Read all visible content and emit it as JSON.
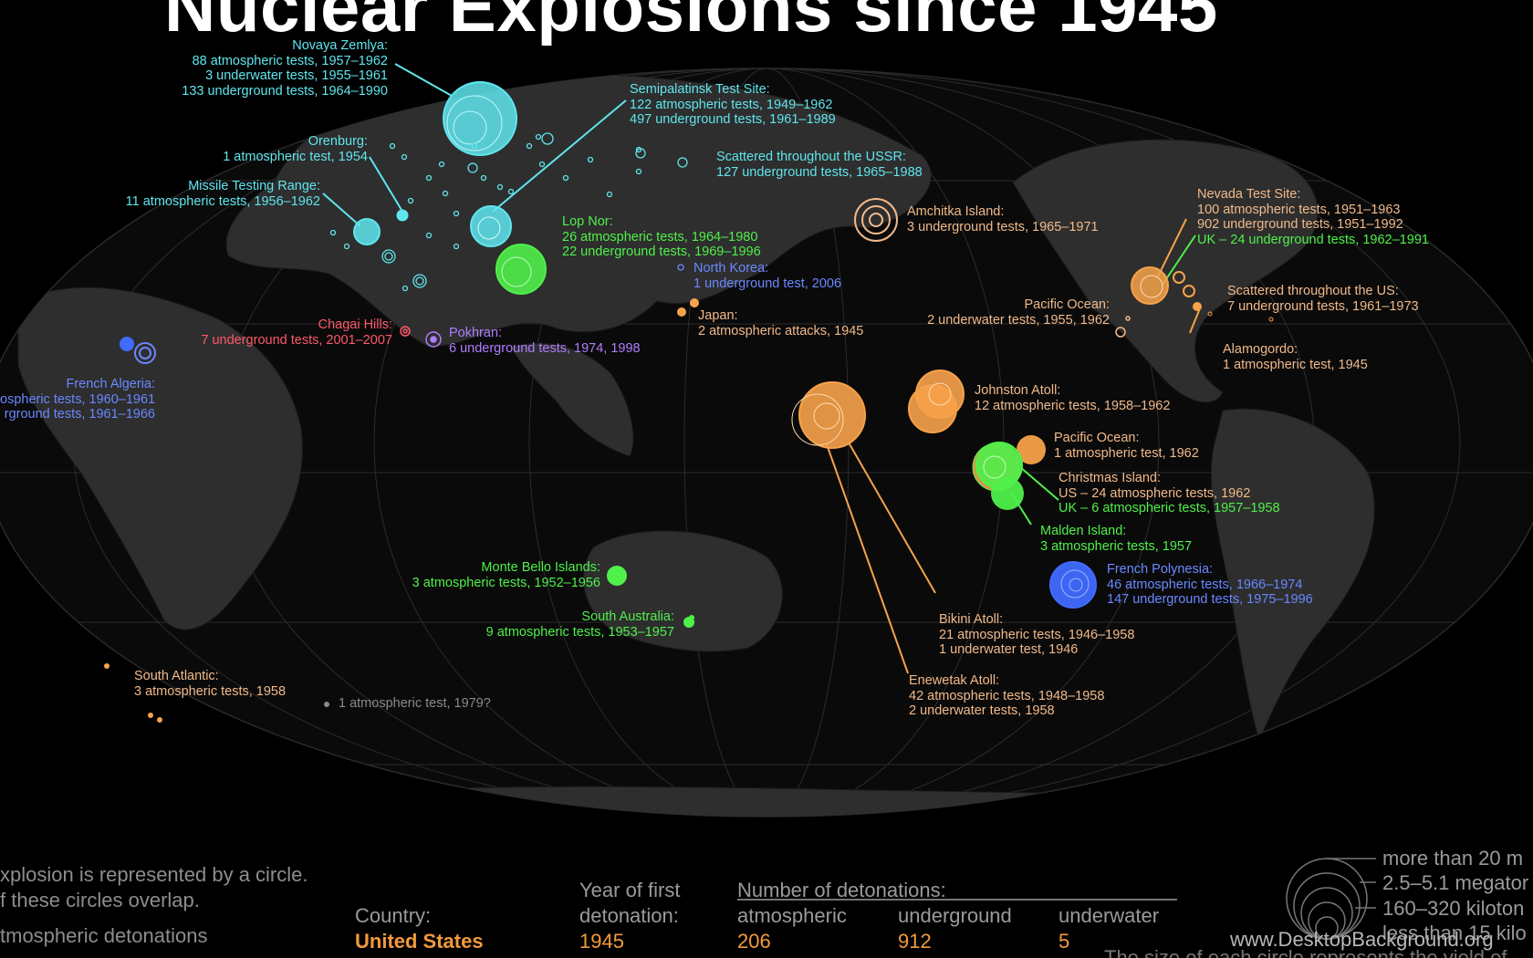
{
  "title": "Nuclear Explosions since 1945",
  "colors": {
    "ussr": "#5fe6ee",
    "china": "#4ff04a",
    "us": "#f7a24a",
    "uk": "#4ff04a",
    "france": "#3f6cff",
    "india": "#b07cff",
    "pakistan": "#ff5a6a",
    "nkorea": "#6a88ff",
    "unknown": "#8a8a8a"
  },
  "labels": {
    "novaya": [
      "Novaya Zemlya:",
      "88 atmospheric tests, 1957–1962",
      "3 underwater tests, 1955–1961",
      "133 underground tests, 1964–1990"
    ],
    "semi": [
      "Semipalatinsk Test Site:",
      "122 atmospheric tests, 1949–1962",
      "497 underground tests, 1961–1989"
    ],
    "orenburg": [
      "Orenburg:",
      "1 atmospheric test, 1954"
    ],
    "ussr_scattered": [
      "Scattered throughout the USSR:",
      "127 underground tests, 1965–1988"
    ],
    "missile": [
      "Missile Testing Range:",
      "11 atmospheric tests, 1956–1962"
    ],
    "lopnor": [
      "Lop Nor:",
      "26 atmospheric tests, 1964–1980",
      "22 underground tests, 1969–1996"
    ],
    "amchitka": [
      "Amchitka Island:",
      "3 underground tests, 1965–1971"
    ],
    "nevada": [
      "Nevada Test Site:",
      "100 atmospheric tests, 1951–1963",
      "902 underground tests, 1951–1992"
    ],
    "nevada_uk": "UK – 24 underground tests, 1962–1991",
    "nkorea": [
      "North Korea:",
      "1 underground test, 2006"
    ],
    "pacific1": [
      "Pacific Ocean:",
      "2 underwater tests, 1955, 1962"
    ],
    "us_scattered": [
      "Scattered throughout the US:",
      "7 underground tests, 1961–1973"
    ],
    "japan": [
      "Japan:",
      "2 atmospheric attacks, 1945"
    ],
    "chagai": [
      "Chagai Hills:",
      "7 underground tests, 2001–2007"
    ],
    "pokhran": [
      "Pokhran:",
      "6 underground tests, 1974, 1998"
    ],
    "alamogordo": [
      "Alamogordo:",
      "1 atmospheric test, 1945"
    ],
    "algeria": [
      "French Algeria:",
      "ospheric tests, 1960–1961",
      "rground tests, 1961–1966"
    ],
    "johnston": [
      "Johnston Atoll:",
      "12 atmospheric tests, 1958–1962"
    ],
    "pacific2": [
      "Pacific Ocean:",
      "1 atmospheric test, 1962"
    ],
    "christmas": [
      "Christmas Island:",
      "US – 24 atmospheric tests, 1962"
    ],
    "christmas_uk": "UK – 6 atmospheric tests, 1957–1958",
    "malden": [
      "Malden Island:",
      "3 atmospheric tests, 1957"
    ],
    "monte": [
      "Monte Bello Islands:",
      "3 atmospheric tests, 1952–1956"
    ],
    "polynesia": [
      "French Polynesia:",
      "46 atmospheric tests, 1966–1974",
      "147 underground tests, 1975–1996"
    ],
    "s_australia": [
      "South Australia:",
      "9 atmospheric tests, 1953–1957"
    ],
    "bikini": [
      "Bikini Atoll:",
      "21 atmospheric tests, 1946–1958",
      "1 underwater test, 1946"
    ],
    "s_atlantic": [
      "South Atlantic:",
      "3 atmospheric tests, 1958"
    ],
    "unknown": "1 atmospheric test, 1979?",
    "enewetak": [
      "Enewetak Atoll:",
      "42 atmospheric tests, 1948–1958",
      "2 underwater tests, 1958"
    ]
  },
  "footer": {
    "intro1": "xplosion is represented by a circle.",
    "intro2": "f these circles overlap.",
    "intro3": "tmospheric detonations",
    "country_label": "Country:",
    "country_value": "United States",
    "year_label1": "Year of first",
    "year_label2": "detonation:",
    "year_value": "1945",
    "num_label": "Number of detonations:",
    "cols": [
      "atmospheric",
      "underground",
      "underwater"
    ],
    "values": [
      "206",
      "912",
      "5"
    ],
    "legend": [
      "more than 20 m",
      "2.5–5.1 megator",
      "160–320 kiloton",
      "less than 15 kilo"
    ],
    "bottom_note": "The size of each circle represents the yield of",
    "watermark": "www.DesktopBackground.org"
  }
}
